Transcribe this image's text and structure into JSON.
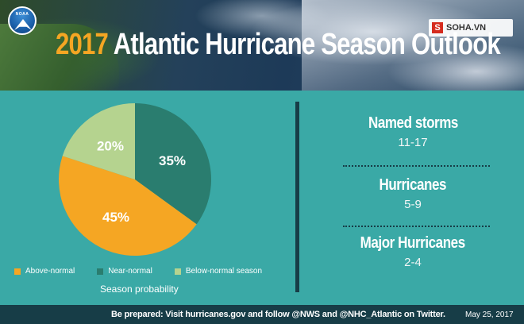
{
  "header": {
    "year": "2017",
    "title_rest": "Atlantic Hurricane Season Outlook",
    "logo_text": "NOAA",
    "watermark_mark": "S",
    "watermark_text": "SOHA.VN"
  },
  "colors": {
    "above": "#f5a623",
    "near": "#2a7d6f",
    "below": "#b5d38f",
    "background": "#3aa9a6",
    "dark": "#173d47"
  },
  "chart_data": {
    "type": "pie",
    "categories": [
      "Above-normal",
      "Near-normal",
      "Below-normal season"
    ],
    "values": [
      45,
      35,
      20
    ],
    "data_labels": [
      "45%",
      "35%",
      "20%"
    ],
    "xlabel": "Season probability",
    "legend": "bottom"
  },
  "legend": {
    "items": [
      {
        "label": "Above-normal"
      },
      {
        "label": "Near-normal"
      },
      {
        "label": "Below-normal season"
      }
    ],
    "caption": "Season probability"
  },
  "stats": [
    {
      "label": "Named storms",
      "value": "11-17"
    },
    {
      "label": "Hurricanes",
      "value": "5-9"
    },
    {
      "label": "Major Hurricanes",
      "value": "2-4"
    }
  ],
  "footer": {
    "text": "Be prepared: Visit hurricanes.gov and follow @NWS and @NHC_Atlantic on Twitter.",
    "date": "May 25, 2017"
  }
}
